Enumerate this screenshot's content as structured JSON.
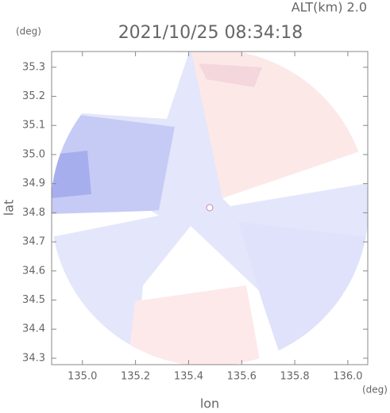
{
  "chart_data": {
    "type": "heatmap",
    "title": "2021/10/25 08:34:18",
    "altitude_label": "ALT(km) 2.0",
    "x_label": "lon",
    "y_label": "lat",
    "x_unit": "(deg)",
    "y_unit": "(deg)",
    "xlim": [
      134.884,
      136.075
    ],
    "ylim": [
      34.278,
      35.354
    ],
    "xticks": [
      {
        "value": 135.0,
        "label": "135.0"
      },
      135.2,
      135.4,
      135.6,
      135.8,
      {
        "value": 136.0,
        "label": "136.0"
      }
    ],
    "yticks": [
      34.3,
      34.4,
      34.5,
      34.6,
      34.7,
      34.8,
      34.9,
      {
        "value": 35.0,
        "label": "35.0"
      },
      35.1,
      35.2,
      35.3
    ]
  }
}
